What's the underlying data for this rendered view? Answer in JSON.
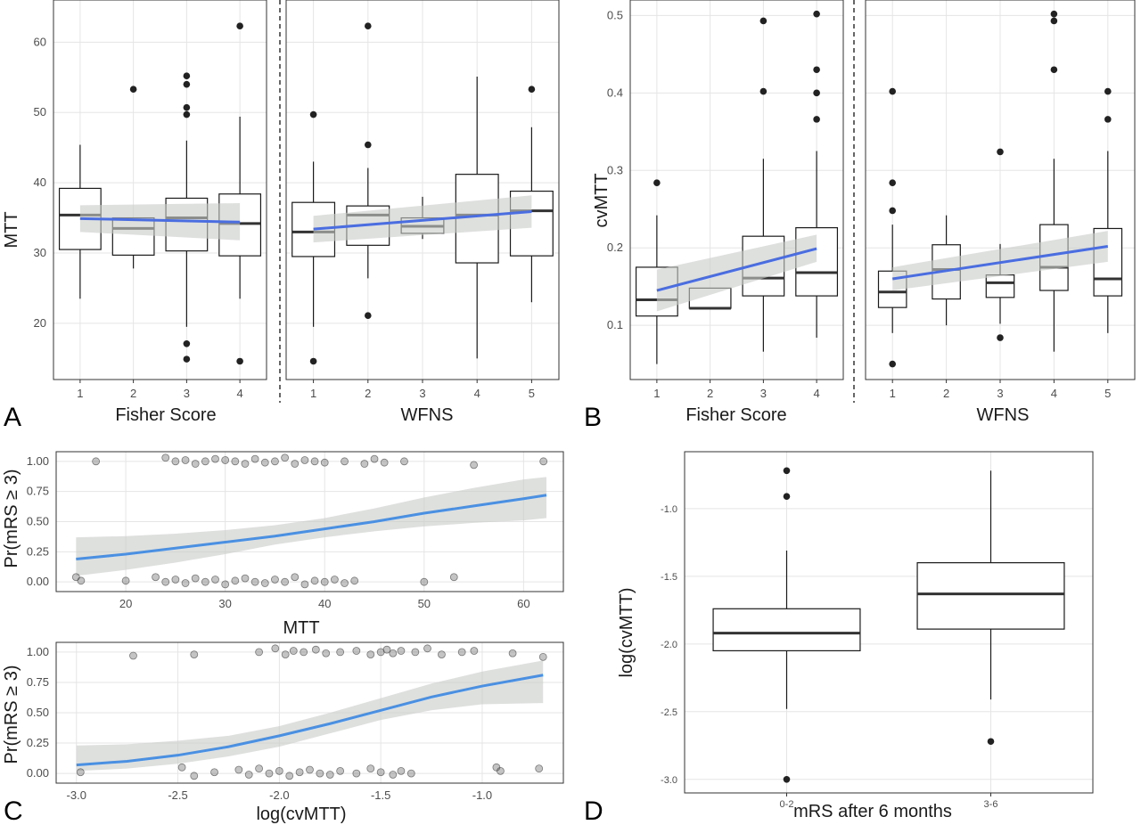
{
  "panel_labels": {
    "A": "A",
    "B": "B",
    "C": "C",
    "D": "D"
  },
  "colors": {
    "fit": "#4a6de0",
    "fit_c": "#4a90e2",
    "ribbon": "#c8cbc8",
    "grid": "#e5e5e5",
    "point": "#222222"
  },
  "chart_data": [
    {
      "id": "A-fisher",
      "type": "boxplot",
      "xlabel": "Fisher Score",
      "ylabel": "MTT",
      "ylim": [
        12,
        66
      ],
      "yticks": [
        20,
        30,
        40,
        50,
        60
      ],
      "categories": [
        "1",
        "2",
        "3",
        "4"
      ],
      "boxes": [
        {
          "lower": 23.5,
          "q1": 30.5,
          "median": 35.4,
          "q3": 39.2,
          "upper": 45.4,
          "outliers": []
        },
        {
          "lower": 27.8,
          "q1": 29.7,
          "median": 33.5,
          "q3": 35.0,
          "upper": 35.0,
          "outliers": [
            53.3
          ]
        },
        {
          "lower": 19.5,
          "q1": 30.3,
          "median": 35.0,
          "q3": 37.8,
          "upper": 46.0,
          "outliers": [
            55.2,
            54.0,
            50.7,
            49.7,
            17.1,
            14.9
          ]
        },
        {
          "lower": 23.5,
          "q1": 29.6,
          "median": 34.2,
          "q3": 38.4,
          "upper": 49.4,
          "outliers": [
            62.3,
            14.6
          ]
        }
      ],
      "fit": {
        "x": [
          1,
          4
        ],
        "y": [
          34.9,
          34.4
        ],
        "ci_lower": [
          33.0,
          31.8
        ],
        "ci_upper": [
          36.8,
          37.1
        ]
      }
    },
    {
      "id": "A-wfns",
      "type": "boxplot",
      "xlabel": "WFNS",
      "ylabel": "",
      "ylim": [
        12,
        66
      ],
      "categories": [
        "1",
        "2",
        "3",
        "4",
        "5"
      ],
      "boxes": [
        {
          "lower": 19.5,
          "q1": 29.5,
          "median": 33.0,
          "q3": 37.2,
          "upper": 43.0,
          "outliers": [
            49.7,
            14.6
          ]
        },
        {
          "lower": 26.4,
          "q1": 31.1,
          "median": 35.4,
          "q3": 36.7,
          "upper": 42.1,
          "outliers": [
            62.3,
            45.4,
            21.1
          ]
        },
        {
          "lower": 32.0,
          "q1": 32.8,
          "median": 33.8,
          "q3": 35.0,
          "upper": 38.0,
          "outliers": []
        },
        {
          "lower": 15.0,
          "q1": 28.6,
          "median": 35.4,
          "q3": 41.2,
          "upper": 55.1,
          "outliers": []
        },
        {
          "lower": 23.0,
          "q1": 29.6,
          "median": 36.0,
          "q3": 38.8,
          "upper": 47.9,
          "outliers": [
            53.3
          ]
        }
      ],
      "fit": {
        "x": [
          1,
          5
        ],
        "y": [
          33.4,
          35.9
        ],
        "ci_lower": [
          31.5,
          33.6
        ],
        "ci_upper": [
          35.3,
          38.2
        ]
      }
    },
    {
      "id": "B-fisher",
      "type": "boxplot",
      "xlabel": "Fisher Score",
      "ylabel": "cvMTT",
      "ylim": [
        0.03,
        0.52
      ],
      "yticks": [
        0.1,
        0.2,
        0.3,
        0.4,
        0.5
      ],
      "categories": [
        "1",
        "2",
        "3",
        "4"
      ],
      "boxes": [
        {
          "lower": 0.05,
          "q1": 0.112,
          "median": 0.133,
          "q3": 0.175,
          "upper": 0.242,
          "outliers": [
            0.284
          ]
        },
        {
          "lower": 0.122,
          "q1": 0.122,
          "median": 0.122,
          "q3": 0.148,
          "upper": 0.148,
          "outliers": []
        },
        {
          "lower": 0.066,
          "q1": 0.138,
          "median": 0.161,
          "q3": 0.215,
          "upper": 0.315,
          "outliers": [
            0.493,
            0.402
          ]
        },
        {
          "lower": 0.084,
          "q1": 0.138,
          "median": 0.168,
          "q3": 0.226,
          "upper": 0.325,
          "outliers": [
            0.502,
            0.43,
            0.4,
            0.366
          ]
        }
      ],
      "fit": {
        "x": [
          1,
          4
        ],
        "y": [
          0.145,
          0.199
        ],
        "ci_lower": [
          0.118,
          0.182
        ],
        "ci_upper": [
          0.172,
          0.217
        ]
      }
    },
    {
      "id": "B-wfns",
      "type": "boxplot",
      "xlabel": "WFNS",
      "ylabel": "",
      "ylim": [
        0.03,
        0.52
      ],
      "categories": [
        "1",
        "2",
        "3",
        "4",
        "5"
      ],
      "boxes": [
        {
          "lower": 0.09,
          "q1": 0.123,
          "median": 0.143,
          "q3": 0.17,
          "upper": 0.23,
          "outliers": [
            0.402,
            0.284,
            0.248,
            0.05
          ]
        },
        {
          "lower": 0.1,
          "q1": 0.134,
          "median": 0.172,
          "q3": 0.204,
          "upper": 0.242,
          "outliers": []
        },
        {
          "lower": 0.102,
          "q1": 0.136,
          "median": 0.155,
          "q3": 0.165,
          "upper": 0.205,
          "outliers": [
            0.324,
            0.084
          ]
        },
        {
          "lower": 0.066,
          "q1": 0.145,
          "median": 0.175,
          "q3": 0.23,
          "upper": 0.315,
          "outliers": [
            0.502,
            0.493,
            0.43
          ]
        },
        {
          "lower": 0.09,
          "q1": 0.138,
          "median": 0.16,
          "q3": 0.225,
          "upper": 0.325,
          "outliers": [
            0.402,
            0.366
          ]
        }
      ],
      "fit": {
        "x": [
          1,
          5
        ],
        "y": [
          0.16,
          0.202
        ],
        "ci_lower": [
          0.145,
          0.182
        ],
        "ci_upper": [
          0.175,
          0.222
        ]
      }
    },
    {
      "id": "C-mtt",
      "type": "scatter",
      "xlabel": "MTT",
      "ylabel": "Pr(mRS ≥ 3)",
      "xlim": [
        13,
        64
      ],
      "ylim": [
        -0.08,
        1.08
      ],
      "xticks": [
        20,
        30,
        40,
        50,
        60
      ],
      "yticks": [
        "0.00",
        "0.25",
        "0.50",
        "0.75",
        "1.00"
      ],
      "points": [
        [
          17,
          1.0
        ],
        [
          24,
          1.03
        ],
        [
          25,
          1.0
        ],
        [
          26,
          1.01
        ],
        [
          27,
          0.98
        ],
        [
          28,
          1.0
        ],
        [
          29,
          1.02
        ],
        [
          30,
          1.01
        ],
        [
          31,
          1.0
        ],
        [
          32,
          0.98
        ],
        [
          33,
          1.02
        ],
        [
          34,
          0.99
        ],
        [
          35,
          1.0
        ],
        [
          36,
          1.03
        ],
        [
          37,
          0.98
        ],
        [
          38,
          1.01
        ],
        [
          39,
          1.0
        ],
        [
          40,
          0.99
        ],
        [
          42,
          1.0
        ],
        [
          44,
          0.98
        ],
        [
          45,
          1.02
        ],
        [
          46,
          0.99
        ],
        [
          48,
          1.0
        ],
        [
          55,
          0.97
        ],
        [
          62,
          1.0
        ],
        [
          15,
          0.04
        ],
        [
          15.5,
          0.01
        ],
        [
          20,
          0.01
        ],
        [
          23,
          0.04
        ],
        [
          24,
          0.0
        ],
        [
          25,
          0.02
        ],
        [
          26,
          -0.01
        ],
        [
          27,
          0.03
        ],
        [
          28,
          0.0
        ],
        [
          29,
          0.02
        ],
        [
          30,
          -0.02
        ],
        [
          31,
          0.01
        ],
        [
          32,
          0.03
        ],
        [
          33,
          0.0
        ],
        [
          34,
          -0.01
        ],
        [
          35,
          0.02
        ],
        [
          36,
          0.0
        ],
        [
          37,
          0.04
        ],
        [
          38,
          -0.02
        ],
        [
          39,
          0.01
        ],
        [
          40,
          0.0
        ],
        [
          41,
          0.02
        ],
        [
          42,
          -0.01
        ],
        [
          43,
          0.01
        ],
        [
          50,
          0.0
        ],
        [
          53,
          0.04
        ]
      ],
      "fit": {
        "x": [
          15,
          20,
          25,
          30,
          35,
          40,
          45,
          50,
          55,
          60,
          62.3
        ],
        "y": [
          0.19,
          0.23,
          0.28,
          0.33,
          0.38,
          0.44,
          0.5,
          0.57,
          0.63,
          0.69,
          0.72
        ],
        "ci_lower": [
          0.05,
          0.1,
          0.16,
          0.23,
          0.31,
          0.37,
          0.42,
          0.46,
          0.49,
          0.51,
          0.53
        ],
        "ci_upper": [
          0.37,
          0.38,
          0.4,
          0.43,
          0.47,
          0.53,
          0.61,
          0.7,
          0.78,
          0.85,
          0.87
        ]
      }
    },
    {
      "id": "C-logcv",
      "type": "scatter",
      "xlabel": "log(cvMTT)",
      "ylabel": "Pr(mRS ≥ 3)",
      "xlim": [
        -3.1,
        -0.6
      ],
      "ylim": [
        -0.08,
        1.08
      ],
      "xticks": [
        "-3.0",
        "-2.5",
        "-2.0",
        "-1.5",
        "-1.0"
      ],
      "yticks": [
        "0.00",
        "0.25",
        "0.50",
        "0.75",
        "1.00"
      ],
      "points": [
        [
          -2.72,
          0.97
        ],
        [
          -2.42,
          0.98
        ],
        [
          -2.1,
          1.0
        ],
        [
          -2.02,
          1.03
        ],
        [
          -1.97,
          0.98
        ],
        [
          -1.93,
          1.01
        ],
        [
          -1.88,
          1.0
        ],
        [
          -1.82,
          1.02
        ],
        [
          -1.77,
          0.99
        ],
        [
          -1.7,
          1.0
        ],
        [
          -1.62,
          1.01
        ],
        [
          -1.55,
          0.98
        ],
        [
          -1.5,
          1.0
        ],
        [
          -1.47,
          1.02
        ],
        [
          -1.44,
          0.99
        ],
        [
          -1.4,
          1.01
        ],
        [
          -1.33,
          1.0
        ],
        [
          -1.27,
          1.03
        ],
        [
          -1.2,
          0.98
        ],
        [
          -1.1,
          1.0
        ],
        [
          -1.04,
          1.01
        ],
        [
          -0.85,
          0.99
        ],
        [
          -0.7,
          0.96
        ],
        [
          -2.98,
          0.01
        ],
        [
          -2.48,
          0.05
        ],
        [
          -2.42,
          -0.02
        ],
        [
          -2.32,
          0.01
        ],
        [
          -2.2,
          0.03
        ],
        [
          -2.15,
          -0.01
        ],
        [
          -2.1,
          0.04
        ],
        [
          -2.05,
          0.0
        ],
        [
          -2.0,
          0.02
        ],
        [
          -1.95,
          -0.02
        ],
        [
          -1.9,
          0.01
        ],
        [
          -1.85,
          0.03
        ],
        [
          -1.8,
          0.0
        ],
        [
          -1.75,
          -0.01
        ],
        [
          -1.7,
          0.02
        ],
        [
          -1.62,
          0.0
        ],
        [
          -1.55,
          0.04
        ],
        [
          -1.5,
          0.01
        ],
        [
          -1.44,
          -0.01
        ],
        [
          -1.4,
          0.02
        ],
        [
          -1.35,
          0.0
        ],
        [
          -0.93,
          0.05
        ],
        [
          -0.91,
          0.02
        ],
        [
          -0.72,
          0.04
        ]
      ],
      "fit": {
        "x": [
          -3.0,
          -2.75,
          -2.5,
          -2.25,
          -2.0,
          -1.75,
          -1.5,
          -1.25,
          -1.0,
          -0.7
        ],
        "y": [
          0.07,
          0.1,
          0.15,
          0.22,
          0.31,
          0.41,
          0.52,
          0.63,
          0.72,
          0.81
        ],
        "ci_lower": [
          0.02,
          0.04,
          0.08,
          0.14,
          0.22,
          0.33,
          0.44,
          0.52,
          0.57,
          0.58
        ],
        "ci_upper": [
          0.23,
          0.24,
          0.27,
          0.31,
          0.39,
          0.5,
          0.62,
          0.74,
          0.84,
          0.93
        ]
      }
    },
    {
      "id": "D",
      "type": "boxplot",
      "xlabel": "mRS after 6 months",
      "ylabel": "log(cvMTT)",
      "ylim": [
        -3.1,
        -0.58
      ],
      "yticks": [
        "-3.0",
        "-2.5",
        "-2.0",
        "-1.5",
        "-1.0"
      ],
      "categories": [
        "0-2",
        "3-6"
      ],
      "boxes": [
        {
          "lower": -2.48,
          "q1": -2.05,
          "median": -1.92,
          "q3": -1.74,
          "upper": -1.31,
          "outliers": [
            -0.72,
            -0.91,
            -3.0
          ]
        },
        {
          "lower": -2.41,
          "q1": -1.89,
          "median": -1.63,
          "q3": -1.4,
          "upper": -0.72,
          "outliers": [
            -2.72
          ]
        }
      ]
    }
  ]
}
